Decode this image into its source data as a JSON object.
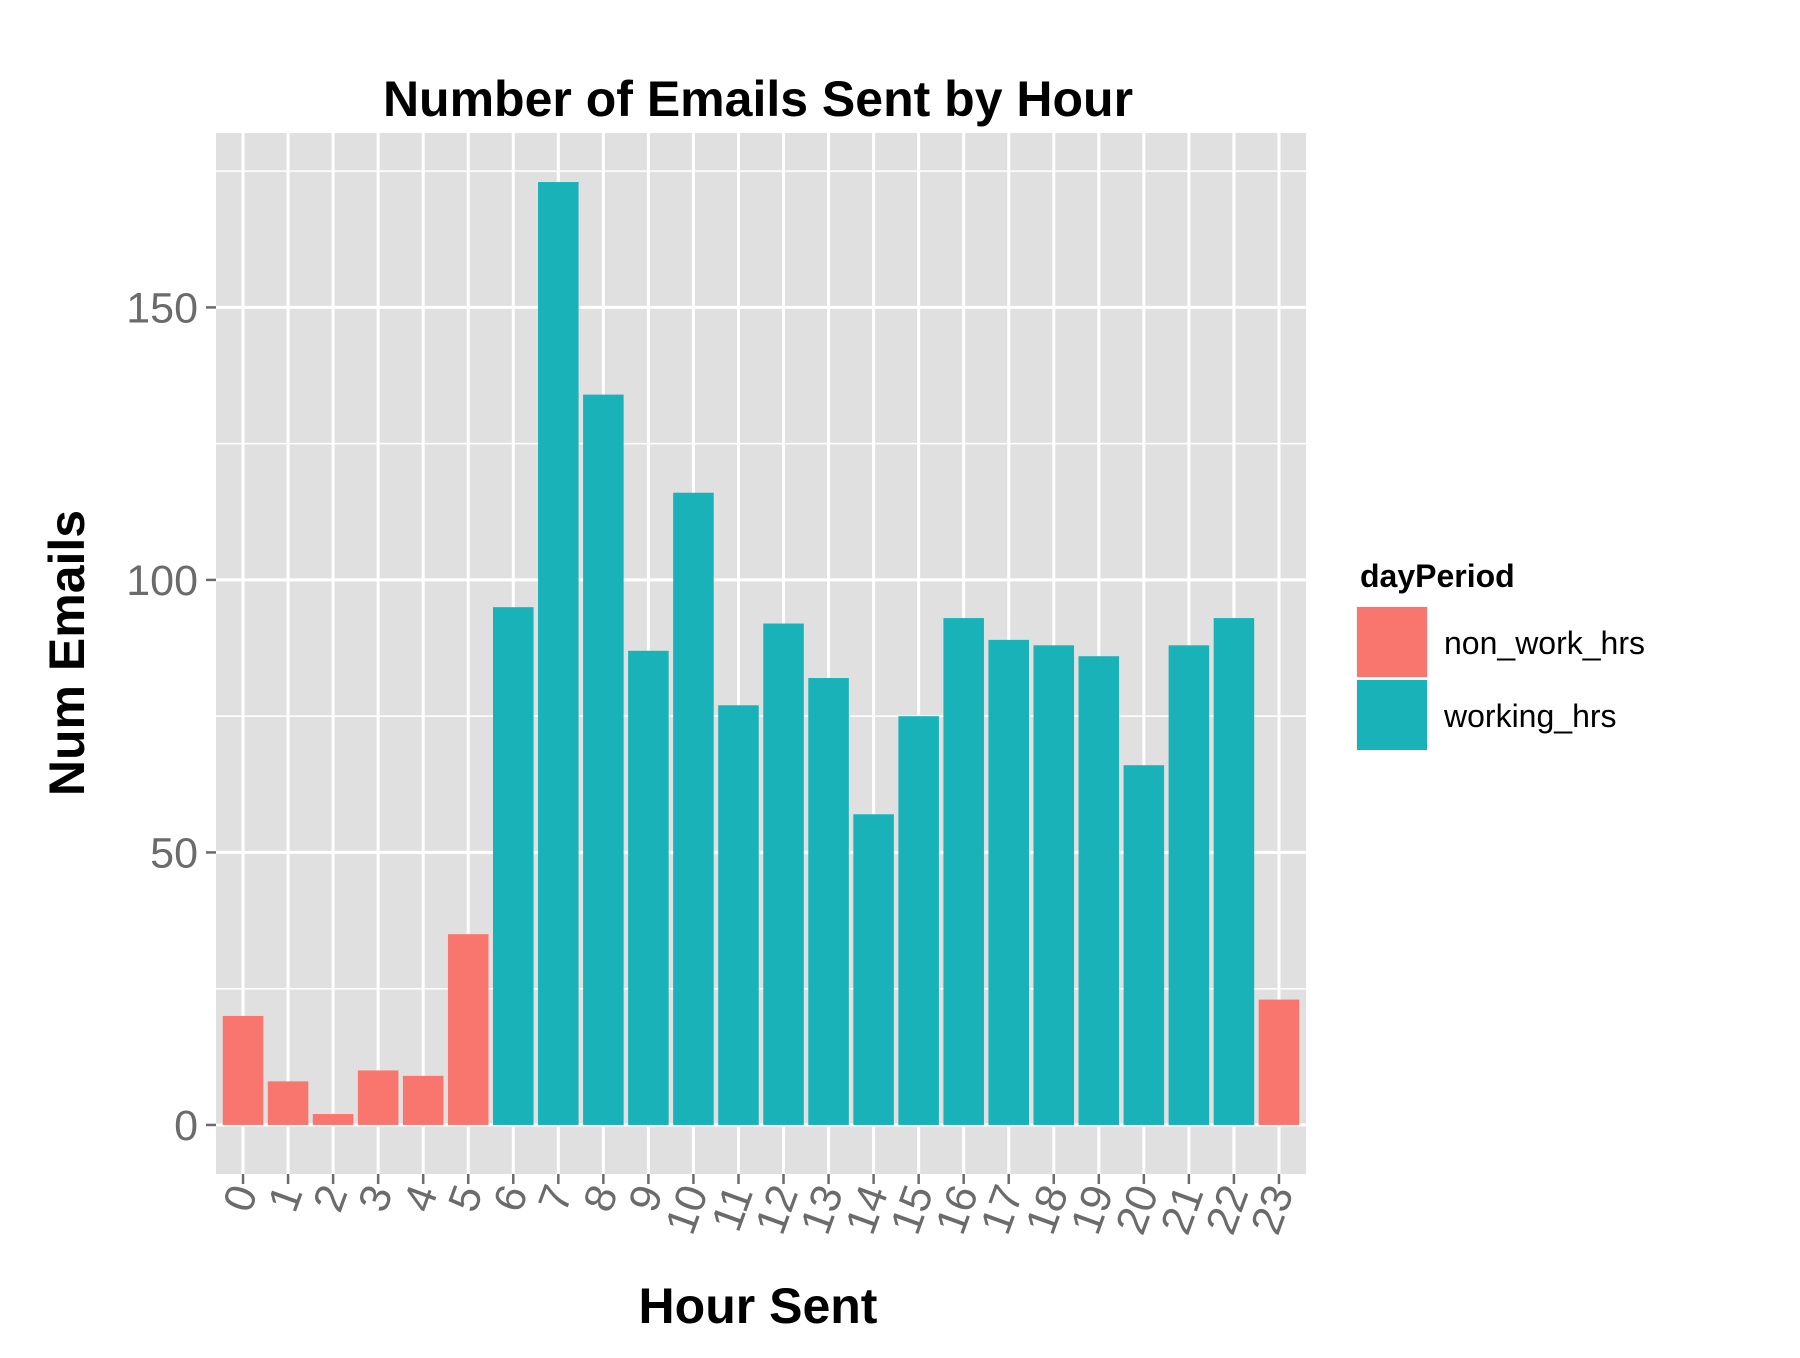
{
  "chart_data": {
    "type": "bar",
    "title": "Number of Emails Sent by Hour",
    "xlabel": "Hour Sent",
    "ylabel": "Num Emails",
    "categories": [
      "0",
      "1",
      "2",
      "3",
      "4",
      "5",
      "6",
      "7",
      "8",
      "9",
      "10",
      "11",
      "12",
      "13",
      "14",
      "15",
      "16",
      "17",
      "18",
      "19",
      "20",
      "21",
      "22",
      "23"
    ],
    "values": [
      20,
      8,
      2,
      10,
      9,
      35,
      95,
      173,
      134,
      87,
      116,
      77,
      92,
      82,
      57,
      75,
      93,
      89,
      88,
      86,
      66,
      88,
      93,
      23
    ],
    "groups": [
      "non_work_hrs",
      "non_work_hrs",
      "non_work_hrs",
      "non_work_hrs",
      "non_work_hrs",
      "non_work_hrs",
      "working_hrs",
      "working_hrs",
      "working_hrs",
      "working_hrs",
      "working_hrs",
      "working_hrs",
      "working_hrs",
      "working_hrs",
      "working_hrs",
      "working_hrs",
      "working_hrs",
      "working_hrs",
      "working_hrs",
      "working_hrs",
      "working_hrs",
      "working_hrs",
      "working_hrs",
      "non_work_hrs"
    ],
    "ylim": [
      -9,
      182
    ],
    "yticks": [
      0,
      50,
      100,
      150
    ],
    "grid": true,
    "legend": {
      "title": "dayPeriod",
      "placement": "right",
      "entries": [
        {
          "name": "non_work_hrs",
          "color": "#f8766d"
        },
        {
          "name": "working_hrs",
          "color": "#19b2b9"
        }
      ]
    },
    "panel_color": "#e0e0e0",
    "grid_color": "#ffffff"
  }
}
